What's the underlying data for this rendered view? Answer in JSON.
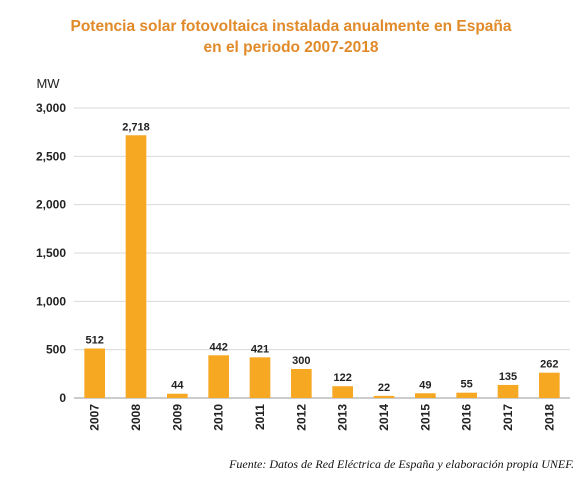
{
  "chart_data": {
    "type": "bar",
    "title_lines": [
      "Potencia solar fotovoltaica instalada anualmente en España",
      "en el periodo 2007-2018"
    ],
    "ylabel": "MW",
    "categories": [
      "2007",
      "2008",
      "2009",
      "2010",
      "2011",
      "2012",
      "2013",
      "2014",
      "2015",
      "2016",
      "2017",
      "2018"
    ],
    "values": [
      512,
      2718,
      44,
      442,
      421,
      300,
      122,
      22,
      49,
      55,
      135,
      262
    ],
    "value_labels": [
      "512",
      "2,718",
      "44",
      "442",
      "421",
      "300",
      "122",
      "22",
      "49",
      "55",
      "135",
      "262"
    ],
    "ylim": [
      0,
      3000
    ],
    "yticks": [
      0,
      500,
      1000,
      1500,
      2000,
      2500,
      3000
    ],
    "ytick_labels": [
      "0",
      "500",
      "1,000",
      "1,500",
      "2,000",
      "2,500",
      "3,000"
    ],
    "grid": true,
    "bar_color": "#f7a823",
    "title_color": "#e08a2a"
  },
  "source_note": "Fuente: Datos de Red Eléctrica de España y elaboración propia UNEF."
}
